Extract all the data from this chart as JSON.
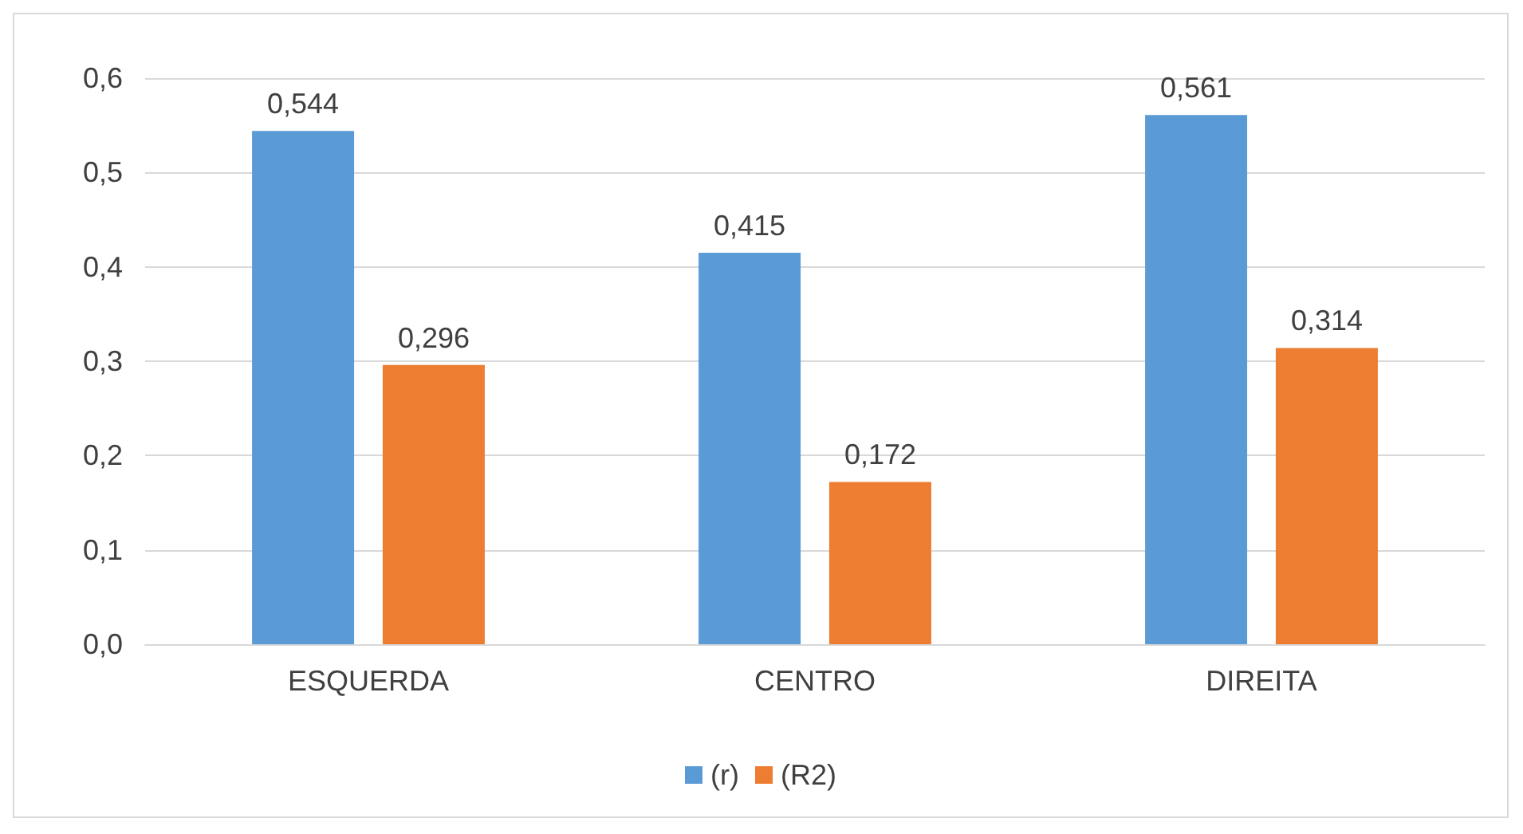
{
  "chart_data": {
    "type": "bar",
    "categories": [
      "ESQUERDA",
      "CENTRO",
      "DIREITA"
    ],
    "series": [
      {
        "name": "(r)",
        "color": "#5b9bd5",
        "values": [
          0.544,
          0.415,
          0.561
        ],
        "value_labels": [
          "0,544",
          "0,415",
          "0,561"
        ]
      },
      {
        "name": "(R2)",
        "color": "#ed7d31",
        "values": [
          0.296,
          0.172,
          0.314
        ],
        "value_labels": [
          "0,296",
          "0,172",
          "0,314"
        ]
      }
    ],
    "ylim": [
      0,
      0.6
    ],
    "yticks": [
      {
        "value": 0,
        "label": "0,0"
      },
      {
        "value": 0.1,
        "label": "0,1"
      },
      {
        "value": 0.2,
        "label": "0,2"
      },
      {
        "value": 0.3,
        "label": "0,3"
      },
      {
        "value": 0.4,
        "label": "0,4"
      },
      {
        "value": 0.5,
        "label": "0,5"
      },
      {
        "value": 0.6,
        "label": "0,6"
      }
    ],
    "grid": "y",
    "legend": "bottom"
  }
}
